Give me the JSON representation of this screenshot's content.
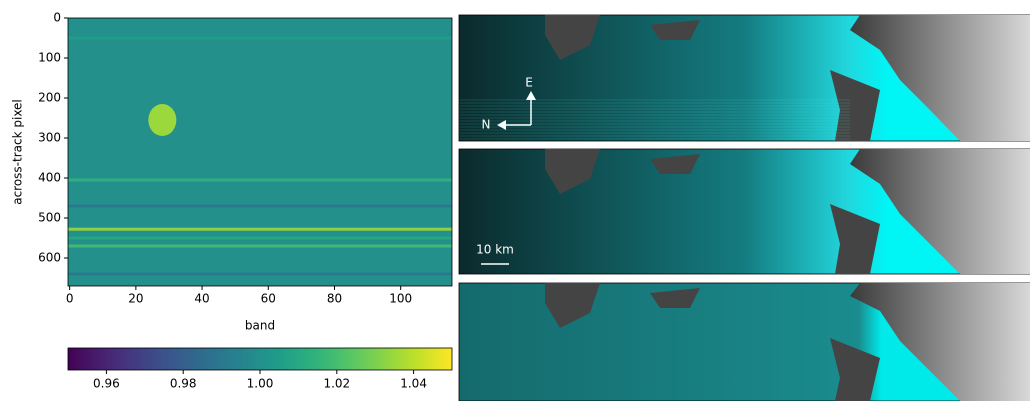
{
  "chart_data": {
    "type": "heatmap",
    "x_label": "band",
    "y_label": "across-track pixel",
    "xlim": [
      -0.5,
      115.5
    ],
    "ylim": [
      0,
      670
    ],
    "xticks": [
      0,
      20,
      40,
      60,
      80,
      100
    ],
    "yticks": [
      0,
      100,
      200,
      300,
      400,
      500,
      600
    ],
    "background": 1.0,
    "stripes": {
      "y": [
        50,
        405,
        470,
        528,
        550,
        570,
        640
      ],
      "values": [
        1.005,
        1.015,
        0.99,
        1.035,
        1.01,
        1.02,
        0.99
      ]
    },
    "spots": {
      "x": [
        28
      ],
      "y": [
        255
      ],
      "values": [
        1.035
      ]
    },
    "colormap": "viridis",
    "clim": [
      0.95,
      1.05
    ],
    "cticks": [
      0.96,
      0.98,
      {
        "value": 1.0,
        "label": "1.00"
      },
      1.02,
      1.04
    ]
  },
  "panels": {
    "east": "E",
    "north": "N",
    "scale": "10 km"
  }
}
